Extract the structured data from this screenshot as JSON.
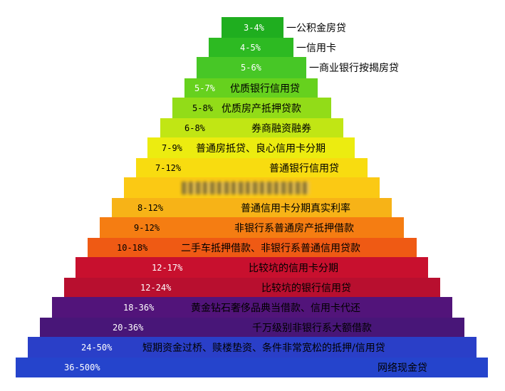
{
  "pyramid": {
    "tiers": [
      {
        "rate": "3-4%",
        "label": "一公积金房贷",
        "color": "#1fae1f",
        "rate_color": "#ffffff"
      },
      {
        "rate": "4-5%",
        "label": "一信用卡",
        "color": "#2dba22",
        "rate_color": "#ffffff"
      },
      {
        "rate": "5-6%",
        "label": "一商业银行按揭房贷",
        "color": "#47c726",
        "rate_color": "#ffffff"
      },
      {
        "rate": "5-7%",
        "label": "优质银行信用贷",
        "color": "#66d11e",
        "rate_color": "#ffffff"
      },
      {
        "rate": "5-8%",
        "label": "优质房产抵押贷款",
        "color": "#92dc18",
        "rate_color": "#000000"
      },
      {
        "rate": "6-8%",
        "label": "券商融资融券",
        "color": "#c1e614",
        "rate_color": "#000000"
      },
      {
        "rate": "7-9%",
        "label": "普通房抵贷、良心信用卡分期",
        "color": "#ecec10",
        "rate_color": "#000000"
      },
      {
        "rate": "7-12%",
        "label": "普通银行信用贷",
        "color": "#f8dc10",
        "rate_color": "#000000"
      },
      {
        "rate": "",
        "label": "",
        "color": "#fbc914",
        "rate_color": "#000000"
      },
      {
        "rate": "8-12%",
        "label": "普通信用卡分期真实利率",
        "color": "#f7b317",
        "rate_color": "#000000"
      },
      {
        "rate": "9-12%",
        "label": "非银行系普通房产抵押借款",
        "color": "#f57d12",
        "rate_color": "#000000"
      },
      {
        "rate": "10-18%",
        "label": "二手车抵押借款、非银行系普通信用贷款",
        "color": "#ef5a14",
        "rate_color": "#000000"
      },
      {
        "rate": "12-17%",
        "label": "比较坑的信用卡分期",
        "color": "#c8102e",
        "rate_color": "#ffffff"
      },
      {
        "rate": "12-24%",
        "label": "比较坑的银行信用贷",
        "color": "#b80f2f",
        "rate_color": "#ffffff"
      },
      {
        "rate": "18-36%",
        "label": "黄金钻石奢侈品典当借款、信用卡代还",
        "color": "#52147a",
        "rate_color": "#ffffff"
      },
      {
        "rate": "20-36%",
        "label": "千万级别非银行系大额借款",
        "color": "#481678",
        "rate_color": "#ffffff"
      },
      {
        "rate": "24-50%",
        "label": "短期资金过桥、赎楼垫资、条件非常宽松的抵押/信用贷",
        "color": "#2a3fc8",
        "rate_color": "#ffffff"
      },
      {
        "rate": "36-500%",
        "label": "网络现金贷",
        "color": "#2544cc",
        "rate_color": "#ffffff"
      }
    ]
  }
}
